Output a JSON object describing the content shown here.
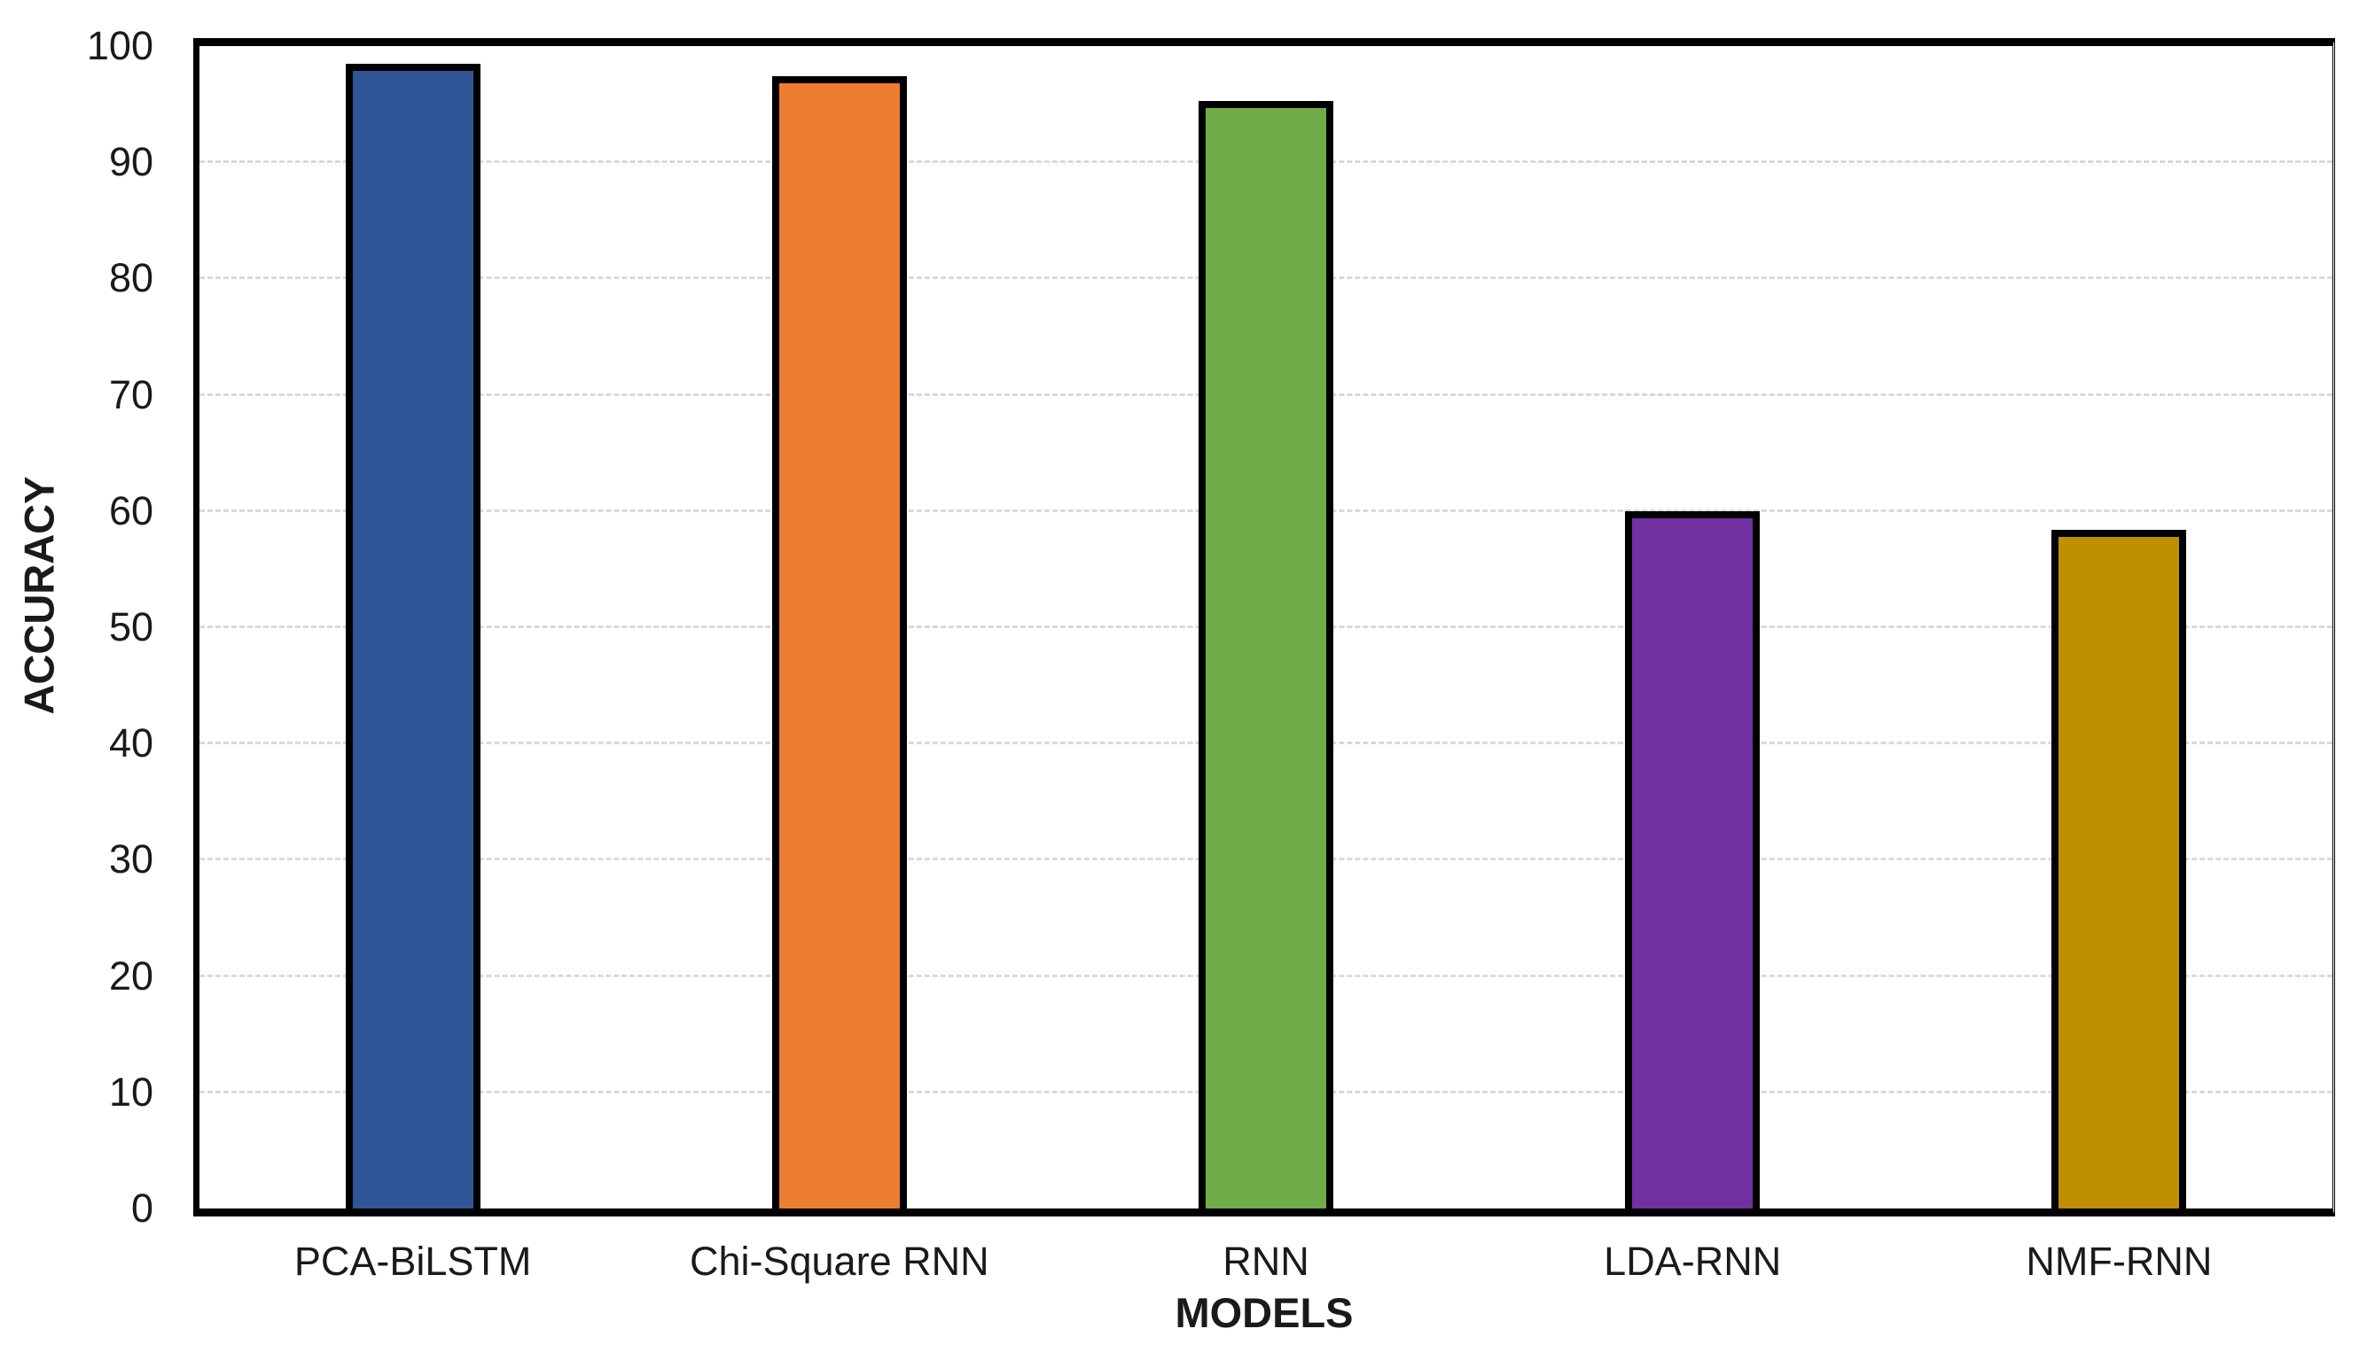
{
  "chart_data": {
    "type": "bar",
    "title": "",
    "categories": [
      "PCA-BiLSTM",
      "Chi-Square RNN",
      "RNN",
      "LDA-RNN",
      "NMF-RNN"
    ],
    "values": [
      98.5,
      97.4,
      95.3,
      60,
      58.4
    ],
    "bar_colors": [
      "#2F5597",
      "#ED7D31",
      "#70AD47",
      "#7030A0",
      "#BF8F00"
    ],
    "bar_border_color": "#000000",
    "xlabel": "MODELS",
    "ylabel": "ACCURACY",
    "ylim": [
      0,
      100
    ],
    "yticks": [
      0,
      10,
      20,
      30,
      40,
      50,
      60,
      70,
      80,
      90,
      100
    ],
    "grid": "horizontal-dashed",
    "gridline_color": "#D9D9D9",
    "plot_background": "#FFFFFF",
    "legend": "none"
  }
}
